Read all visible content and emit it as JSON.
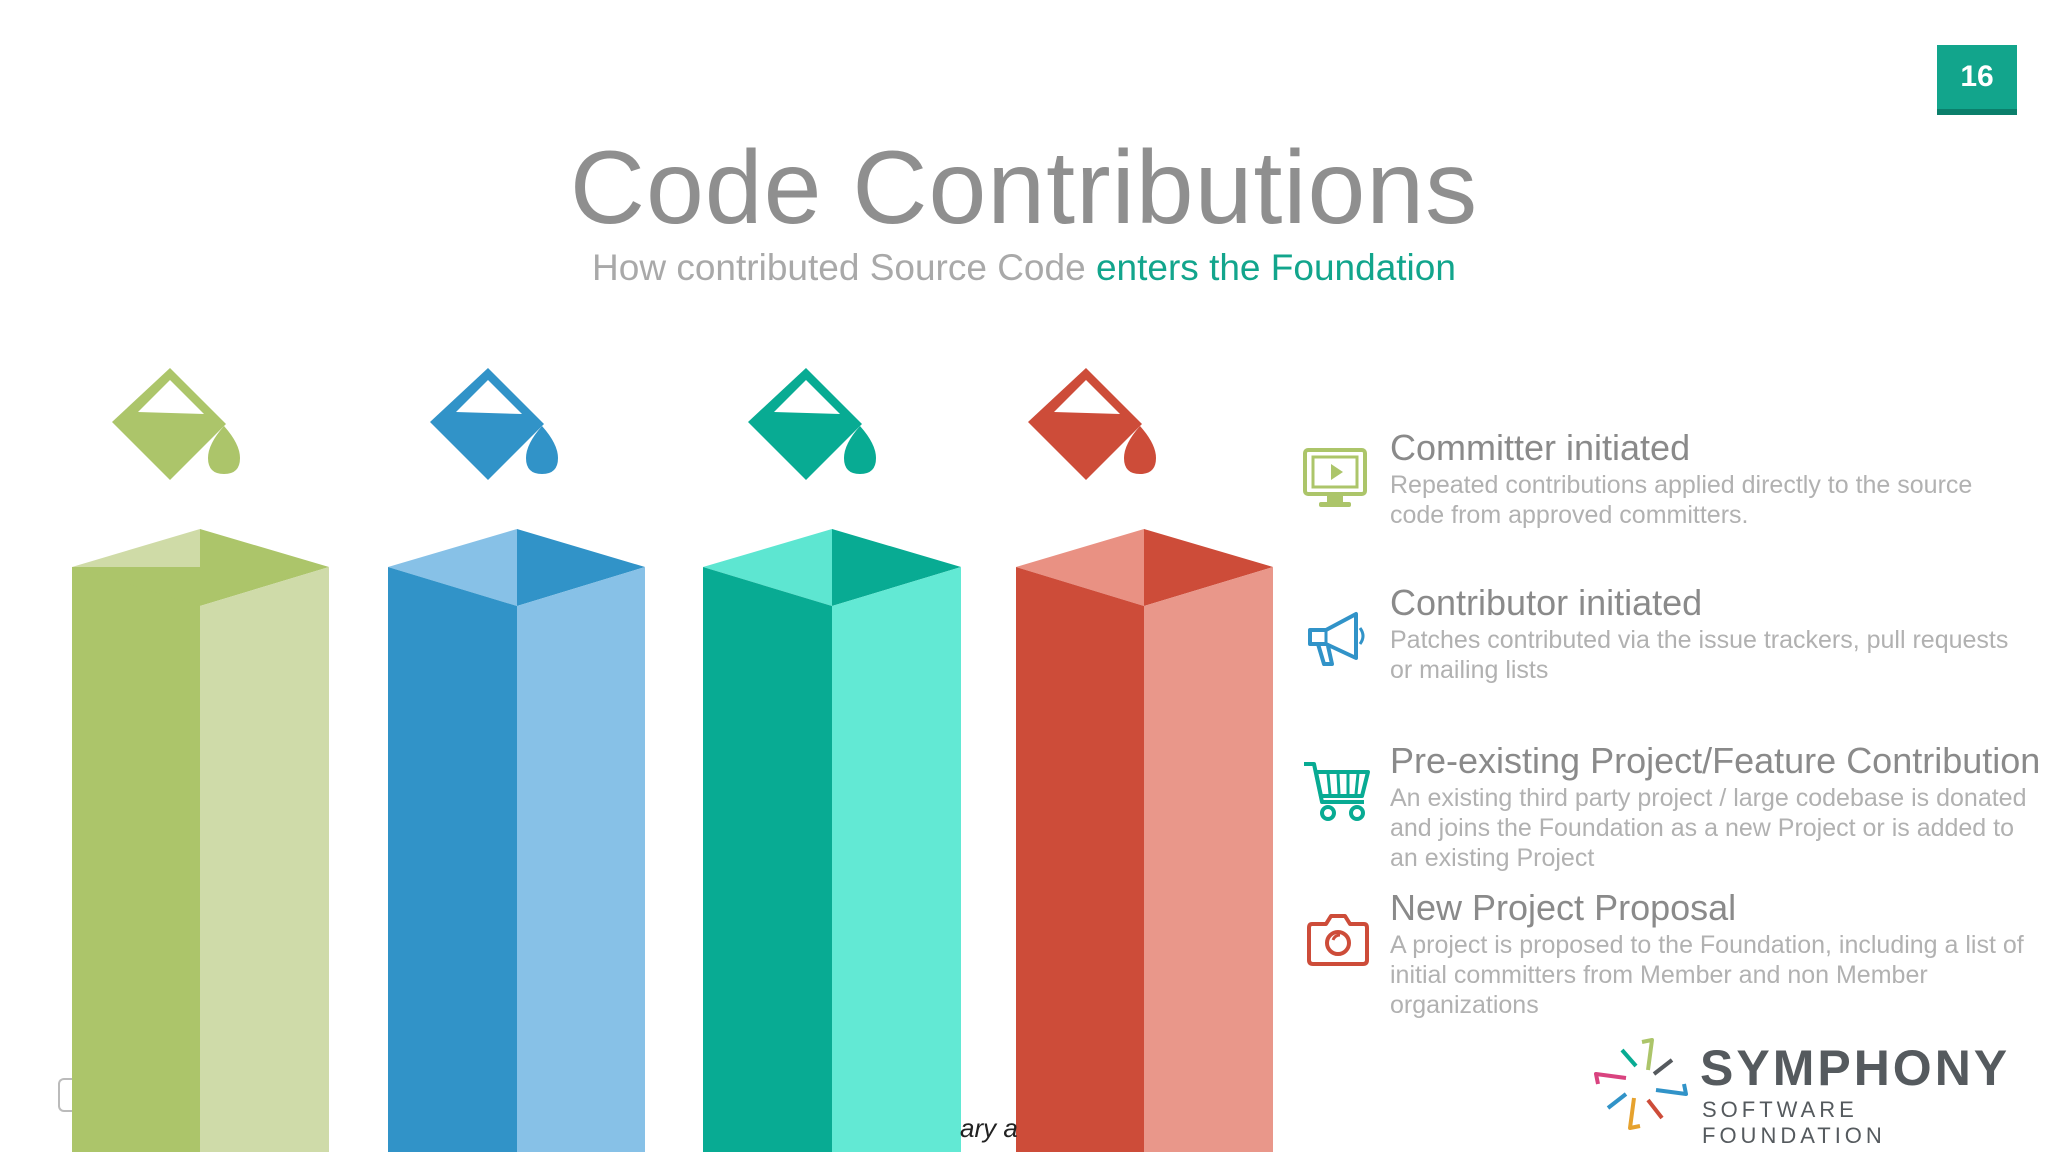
{
  "page_number": "16",
  "title": "Code Contributions",
  "subtitle": {
    "prefix": "How contributed Source Code",
    "accent": "enters the Foundation"
  },
  "colors": {
    "green": "#acc56a",
    "blue": "#3193c8",
    "teal": "#08ab93",
    "red": "#cd4c39",
    "accent": "#12a58c"
  },
  "columns": [
    {
      "color_name": "green",
      "icon": "paint-bucket-icon"
    },
    {
      "color_name": "blue",
      "icon": "paint-bucket-icon"
    },
    {
      "color_name": "teal",
      "icon": "paint-bucket-icon"
    },
    {
      "color_name": "red",
      "icon": "paint-bucket-icon"
    }
  ],
  "items": [
    {
      "title": "Committer initiated",
      "desc": "Repeated contributions applied directly to the source code from approved committers.",
      "icon": "monitor-play-icon"
    },
    {
      "title": "Contributor initiated",
      "desc": "Patches contributed via the issue trackers, pull requests or mailing lists",
      "icon": "megaphone-icon"
    },
    {
      "title": "Pre-existing Project/Feature Contribution",
      "desc": "An existing third party project / large codebase is donated and joins the Foundation as a new Project or is added to an existing Project",
      "icon": "shopping-cart-icon"
    },
    {
      "title": "New Project Proposal",
      "desc": "A project is proposed to the Foundation, including a list of initial committers from Member and non Member organizations",
      "icon": "camera-icon"
    }
  ],
  "logo": {
    "name": "SYMPHONY",
    "tagline": "SOFTWARE FOUNDATION",
    "icon": "symphony-logo-icon"
  },
  "footer_fragment": "ary a"
}
